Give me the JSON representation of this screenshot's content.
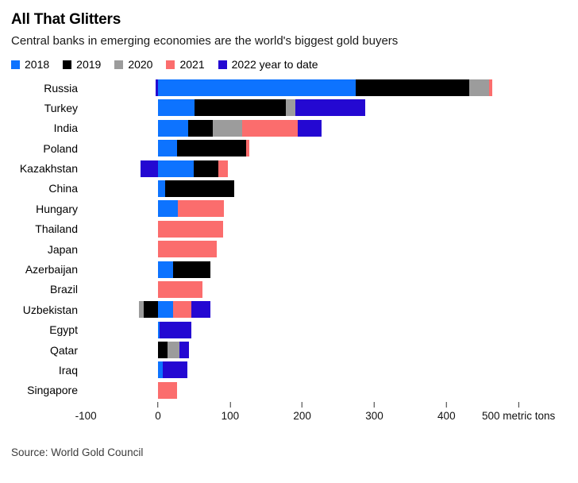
{
  "header": {
    "title": "All That Glitters",
    "subtitle": "Central banks in emerging economies are the world's biggest gold buyers"
  },
  "legend": [
    {
      "label": "2018",
      "color": "#0d73ff"
    },
    {
      "label": "2019",
      "color": "#000000"
    },
    {
      "label": "2020",
      "color": "#9c9c9c"
    },
    {
      "label": "2021",
      "color": "#fb6d6d"
    },
    {
      "label": "2022 year to date",
      "color": "#2408d2"
    }
  ],
  "chart_data": {
    "type": "bar",
    "orientation": "horizontal",
    "stacked": true,
    "title": "All That Glitters",
    "xlabel": "metric tons",
    "unit": "metric tons",
    "categories": [
      "Russia",
      "Turkey",
      "India",
      "Poland",
      "Kazakhstan",
      "China",
      "Hungary",
      "Thailand",
      "Japan",
      "Azerbaijan",
      "Brazil",
      "Uzbekistan",
      "Egypt",
      "Qatar",
      "Iraq",
      "Singapore"
    ],
    "series": [
      {
        "name": "2018",
        "color": "#0d73ff",
        "values": [
          274,
          51,
          42,
          26,
          50,
          10,
          28,
          0,
          0,
          21,
          0,
          21,
          2,
          0,
          7,
          0
        ]
      },
      {
        "name": "2019",
        "color": "#000000",
        "values": [
          158,
          126,
          34,
          96,
          34,
          96,
          0,
          0,
          0,
          52,
          0,
          -20,
          0,
          13,
          0,
          0
        ]
      },
      {
        "name": "2020",
        "color": "#9c9c9c",
        "values": [
          27,
          13,
          41,
          0,
          0,
          0,
          0,
          0,
          0,
          0,
          0,
          -6,
          0,
          17,
          0,
          0
        ]
      },
      {
        "name": "2021",
        "color": "#fb6d6d",
        "values": [
          4,
          0,
          77,
          5,
          13,
          0,
          63,
          90,
          81,
          0,
          62,
          25,
          0,
          0,
          0,
          26
        ]
      },
      {
        "name": "2022 year to date",
        "color": "#2408d2",
        "values": [
          -3,
          97,
          33,
          0,
          -24,
          0,
          0,
          0,
          0,
          0,
          0,
          27,
          44,
          13,
          34,
          0
        ]
      }
    ],
    "axis": {
      "min": -98,
      "max": 567,
      "grid": false,
      "legend_position": "top",
      "ticks": [
        {
          "value": -100,
          "label": "-100",
          "mark": false
        },
        {
          "value": 0,
          "label": "0",
          "mark": true
        },
        {
          "value": 100,
          "label": "100",
          "mark": true
        },
        {
          "value": 200,
          "label": "200",
          "mark": true
        },
        {
          "value": 300,
          "label": "300",
          "mark": true
        },
        {
          "value": 400,
          "label": "400",
          "mark": true
        },
        {
          "value": 500,
          "label": "500 metric tons",
          "mark": true
        }
      ]
    }
  },
  "source": "Source: World Gold Council"
}
